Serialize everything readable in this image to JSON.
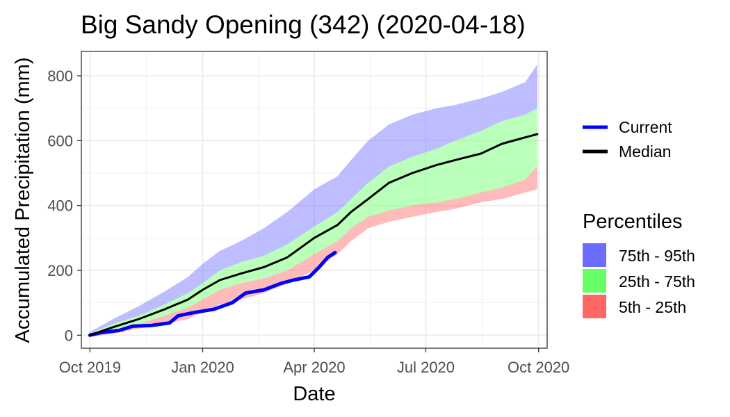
{
  "chart_data": {
    "type": "line",
    "title": "Big Sandy Opening (342) (2020-04-18)",
    "xlabel": "Date",
    "ylabel": "Accumulated Precipitation (mm)",
    "x_range": [
      "2019-09-24",
      "2020-10-08"
    ],
    "ylim": [
      -40,
      875
    ],
    "x_ticks": [
      {
        "date": "2019-10-01",
        "label": "Oct 2019"
      },
      {
        "date": "2020-01-01",
        "label": "Jan 2020"
      },
      {
        "date": "2020-04-01",
        "label": "Apr 2020"
      },
      {
        "date": "2020-07-01",
        "label": "Jul 2020"
      },
      {
        "date": "2020-10-01",
        "label": "Oct 2020"
      }
    ],
    "y_ticks": [
      0,
      200,
      400,
      600,
      800
    ],
    "grid": true,
    "legend_placement": "right",
    "lines": [
      {
        "name": "Current",
        "color": "#0000ff",
        "points": [
          [
            "2019-10-01",
            0
          ],
          [
            "2019-10-10",
            8
          ],
          [
            "2019-10-25",
            15
          ],
          [
            "2019-11-05",
            28
          ],
          [
            "2019-11-20",
            30
          ],
          [
            "2019-12-05",
            38
          ],
          [
            "2019-12-12",
            60
          ],
          [
            "2019-12-25",
            70
          ],
          [
            "2020-01-10",
            80
          ],
          [
            "2020-01-25",
            100
          ],
          [
            "2020-02-05",
            130
          ],
          [
            "2020-02-20",
            140
          ],
          [
            "2020-03-05",
            160
          ],
          [
            "2020-03-15",
            170
          ],
          [
            "2020-03-28",
            180
          ],
          [
            "2020-04-05",
            210
          ],
          [
            "2020-04-12",
            240
          ],
          [
            "2020-04-18",
            255
          ]
        ]
      },
      {
        "name": "Median",
        "color": "#000000",
        "points": [
          [
            "2019-10-01",
            0
          ],
          [
            "2019-10-20",
            25
          ],
          [
            "2019-11-10",
            50
          ],
          [
            "2019-12-01",
            80
          ],
          [
            "2019-12-20",
            110
          ],
          [
            "2020-01-01",
            140
          ],
          [
            "2020-01-15",
            170
          ],
          [
            "2020-02-01",
            190
          ],
          [
            "2020-02-20",
            210
          ],
          [
            "2020-03-10",
            240
          ],
          [
            "2020-04-01",
            300
          ],
          [
            "2020-04-20",
            340
          ],
          [
            "2020-05-01",
            380
          ],
          [
            "2020-05-15",
            420
          ],
          [
            "2020-06-01",
            470
          ],
          [
            "2020-06-20",
            500
          ],
          [
            "2020-07-10",
            525
          ],
          [
            "2020-07-25",
            540
          ],
          [
            "2020-08-15",
            560
          ],
          [
            "2020-09-01",
            590
          ],
          [
            "2020-09-20",
            610
          ],
          [
            "2020-09-30",
            620
          ]
        ]
      }
    ],
    "bands": [
      {
        "name": "75th - 95th",
        "color": "#6c6cff",
        "fill_opacity": 0.45,
        "upper": [
          [
            "2019-10-01",
            10
          ],
          [
            "2019-10-20",
            50
          ],
          [
            "2019-11-10",
            90
          ],
          [
            "2019-12-01",
            135
          ],
          [
            "2019-12-20",
            180
          ],
          [
            "2020-01-01",
            220
          ],
          [
            "2020-01-15",
            260
          ],
          [
            "2020-02-01",
            290
          ],
          [
            "2020-02-20",
            330
          ],
          [
            "2020-03-10",
            380
          ],
          [
            "2020-04-01",
            450
          ],
          [
            "2020-04-20",
            490
          ],
          [
            "2020-05-01",
            540
          ],
          [
            "2020-05-15",
            600
          ],
          [
            "2020-06-01",
            650
          ],
          [
            "2020-06-20",
            680
          ],
          [
            "2020-07-10",
            700
          ],
          [
            "2020-07-25",
            710
          ],
          [
            "2020-08-15",
            730
          ],
          [
            "2020-09-01",
            750
          ],
          [
            "2020-09-20",
            780
          ],
          [
            "2020-09-30",
            835
          ]
        ],
        "lower": [
          [
            "2019-10-01",
            5
          ],
          [
            "2019-10-20",
            35
          ],
          [
            "2019-11-10",
            60
          ],
          [
            "2019-12-01",
            95
          ],
          [
            "2019-12-20",
            130
          ],
          [
            "2020-01-01",
            160
          ],
          [
            "2020-01-15",
            200
          ],
          [
            "2020-02-01",
            225
          ],
          [
            "2020-02-20",
            245
          ],
          [
            "2020-03-10",
            280
          ],
          [
            "2020-04-01",
            335
          ],
          [
            "2020-04-20",
            380
          ],
          [
            "2020-05-01",
            420
          ],
          [
            "2020-05-15",
            470
          ],
          [
            "2020-06-01",
            520
          ],
          [
            "2020-06-20",
            550
          ],
          [
            "2020-07-10",
            575
          ],
          [
            "2020-07-25",
            600
          ],
          [
            "2020-08-15",
            630
          ],
          [
            "2020-09-01",
            660
          ],
          [
            "2020-09-20",
            680
          ],
          [
            "2020-09-30",
            700
          ]
        ]
      },
      {
        "name": "25th - 75th",
        "color": "#66ff66",
        "fill_opacity": 0.45,
        "upper": [
          [
            "2019-10-01",
            5
          ],
          [
            "2019-10-20",
            35
          ],
          [
            "2019-11-10",
            60
          ],
          [
            "2019-12-01",
            95
          ],
          [
            "2019-12-20",
            130
          ],
          [
            "2020-01-01",
            160
          ],
          [
            "2020-01-15",
            200
          ],
          [
            "2020-02-01",
            225
          ],
          [
            "2020-02-20",
            245
          ],
          [
            "2020-03-10",
            280
          ],
          [
            "2020-04-01",
            335
          ],
          [
            "2020-04-20",
            380
          ],
          [
            "2020-05-01",
            420
          ],
          [
            "2020-05-15",
            470
          ],
          [
            "2020-06-01",
            520
          ],
          [
            "2020-06-20",
            550
          ],
          [
            "2020-07-10",
            575
          ],
          [
            "2020-07-25",
            600
          ],
          [
            "2020-08-15",
            630
          ],
          [
            "2020-09-01",
            660
          ],
          [
            "2020-09-20",
            680
          ],
          [
            "2020-09-30",
            700
          ]
        ],
        "lower": [
          [
            "2019-10-01",
            0
          ],
          [
            "2019-10-20",
            15
          ],
          [
            "2019-11-10",
            35
          ],
          [
            "2019-12-01",
            60
          ],
          [
            "2019-12-20",
            85
          ],
          [
            "2020-01-01",
            110
          ],
          [
            "2020-01-15",
            140
          ],
          [
            "2020-02-01",
            160
          ],
          [
            "2020-02-20",
            175
          ],
          [
            "2020-03-10",
            200
          ],
          [
            "2020-04-01",
            250
          ],
          [
            "2020-04-20",
            290
          ],
          [
            "2020-05-01",
            330
          ],
          [
            "2020-05-15",
            365
          ],
          [
            "2020-06-01",
            385
          ],
          [
            "2020-06-20",
            400
          ],
          [
            "2020-07-10",
            410
          ],
          [
            "2020-07-25",
            420
          ],
          [
            "2020-08-15",
            440
          ],
          [
            "2020-09-01",
            455
          ],
          [
            "2020-09-20",
            480
          ],
          [
            "2020-09-30",
            520
          ]
        ]
      },
      {
        "name": "5th - 25th",
        "color": "#ff6666",
        "fill_opacity": 0.45,
        "upper": [
          [
            "2019-10-01",
            0
          ],
          [
            "2019-10-20",
            15
          ],
          [
            "2019-11-10",
            35
          ],
          [
            "2019-12-01",
            60
          ],
          [
            "2019-12-20",
            85
          ],
          [
            "2020-01-01",
            110
          ],
          [
            "2020-01-15",
            140
          ],
          [
            "2020-02-01",
            160
          ],
          [
            "2020-02-20",
            175
          ],
          [
            "2020-03-10",
            200
          ],
          [
            "2020-04-01",
            250
          ],
          [
            "2020-04-20",
            290
          ],
          [
            "2020-05-01",
            330
          ],
          [
            "2020-05-15",
            365
          ],
          [
            "2020-06-01",
            385
          ],
          [
            "2020-06-20",
            400
          ],
          [
            "2020-07-10",
            410
          ],
          [
            "2020-07-25",
            420
          ],
          [
            "2020-08-15",
            440
          ],
          [
            "2020-09-01",
            455
          ],
          [
            "2020-09-20",
            480
          ],
          [
            "2020-09-30",
            520
          ]
        ],
        "lower": [
          [
            "2019-10-01",
            -5
          ],
          [
            "2019-10-20",
            5
          ],
          [
            "2019-11-10",
            20
          ],
          [
            "2019-12-01",
            35
          ],
          [
            "2019-12-20",
            50
          ],
          [
            "2020-01-01",
            70
          ],
          [
            "2020-01-15",
            95
          ],
          [
            "2020-02-01",
            110
          ],
          [
            "2020-02-20",
            130
          ],
          [
            "2020-03-10",
            160
          ],
          [
            "2020-04-01",
            200
          ],
          [
            "2020-04-20",
            250
          ],
          [
            "2020-05-01",
            290
          ],
          [
            "2020-05-15",
            330
          ],
          [
            "2020-06-01",
            350
          ],
          [
            "2020-06-20",
            365
          ],
          [
            "2020-07-10",
            380
          ],
          [
            "2020-07-25",
            390
          ],
          [
            "2020-08-15",
            410
          ],
          [
            "2020-09-01",
            420
          ],
          [
            "2020-09-20",
            440
          ],
          [
            "2020-09-30",
            450
          ]
        ]
      }
    ],
    "legend": {
      "lines": [
        {
          "label": "Current",
          "color": "#0000ff"
        },
        {
          "label": "Median",
          "color": "#000000"
        }
      ],
      "fill_title": "Percentiles",
      "fills": [
        {
          "label": "75th - 95th",
          "color": "#6c6cff"
        },
        {
          "label": "25th - 75th",
          "color": "#66ff66"
        },
        {
          "label": "5th - 25th",
          "color": "#ff6666"
        }
      ]
    }
  }
}
